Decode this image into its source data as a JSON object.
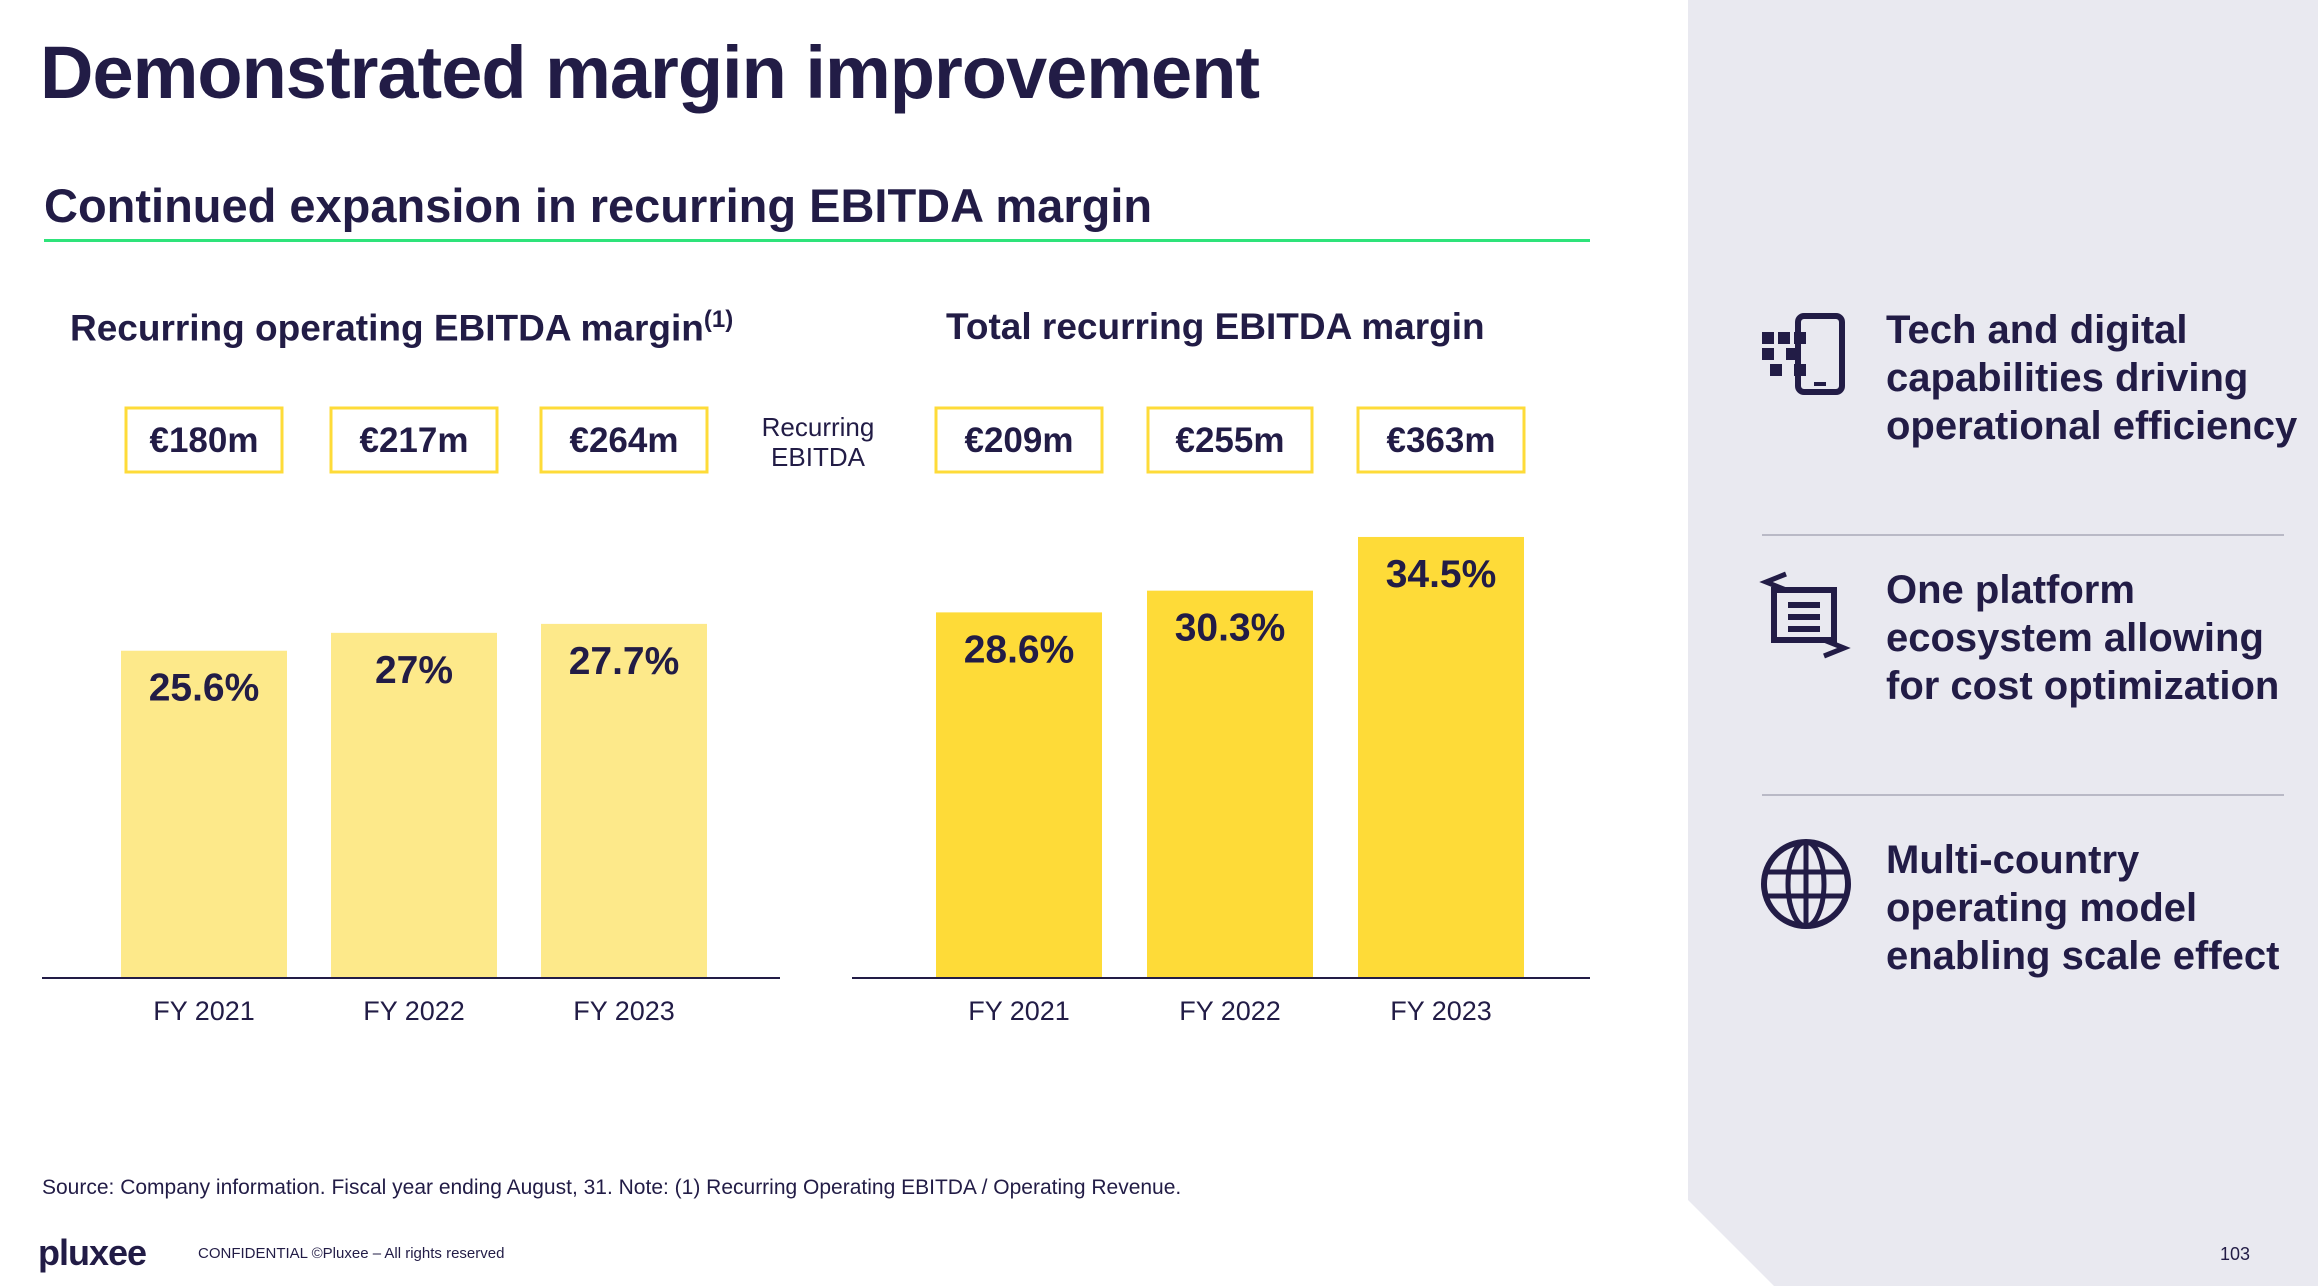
{
  "title": "Demonstrated margin improvement",
  "section_heading": "Continued expansion in recurring EBITDA margin",
  "middle_note": {
    "line1": "Recurring",
    "line2": "EBITDA"
  },
  "colors": {
    "operating_bars": "#fde98a",
    "total_bars": "#fedb38",
    "box_border": "#fedb38",
    "text": "#221c46",
    "green_rule": "#2ee37a",
    "panel_bg": "#e9e9f0"
  },
  "chart_data": [
    {
      "type": "bar",
      "title": "Recurring operating EBITDA margin",
      "title_footnote": "(1)",
      "categories": [
        "FY 2021",
        "FY 2022",
        "FY 2023"
      ],
      "values": [
        25.6,
        27,
        27.7
      ],
      "value_labels": [
        "25.6%",
        "27%",
        "27.7%"
      ],
      "ebitda_labels": [
        "€180m",
        "€217m",
        "€264m"
      ],
      "ylim": [
        0,
        37
      ]
    },
    {
      "type": "bar",
      "title": "Total recurring EBITDA margin",
      "categories": [
        "FY 2021",
        "FY 2022",
        "FY 2023"
      ],
      "values": [
        28.6,
        30.3,
        34.5
      ],
      "value_labels": [
        "28.6%",
        "30.3%",
        "34.5%"
      ],
      "ebitda_labels": [
        "€209m",
        "€255m",
        "€363m"
      ],
      "ylim": [
        0,
        37
      ]
    }
  ],
  "features": [
    {
      "icon": "digital-tech-icon",
      "text": "Tech and digital capabilities driving operational efficiency"
    },
    {
      "icon": "platform-ecosystem-icon",
      "text": "One platform ecosystem allowing for cost optimization"
    },
    {
      "icon": "globe-icon",
      "text": "Multi-country operating model enabling scale effect"
    }
  ],
  "source_note": "Source: Company information. Fiscal year ending August, 31. Note: (1) Recurring Operating EBITDA / Operating Revenue.",
  "footer": {
    "logo": "pluxee",
    "confidential": "CONFIDENTIAL ©Pluxee – All rights reserved",
    "page_number": "103"
  }
}
